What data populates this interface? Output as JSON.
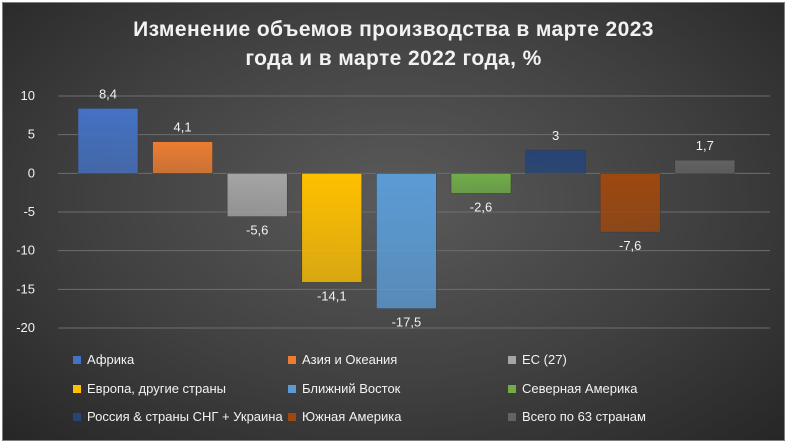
{
  "chart_data": {
    "type": "bar",
    "title_line1": "Изменение объемов производства в марте 2023",
    "title_line2": "года и в марте 2022 года, %",
    "ylim": [
      -20,
      10
    ],
    "yticks": [
      10,
      5,
      0,
      -5,
      -10,
      -15,
      -20
    ],
    "grid": true,
    "legend_placement": "bottom",
    "categories": [
      "Африка",
      "Азия и Океания",
      "ЕС (27)",
      "Европа, другие страны",
      "Ближний Восток",
      "Северная Америка",
      "Россия & страны СНГ + Украина",
      "Южная Америка",
      "Всего по 63 странам"
    ],
    "values": [
      8.4,
      4.1,
      -5.6,
      -14.1,
      -17.5,
      -2.6,
      3,
      -7.6,
      1.7
    ],
    "data_labels": [
      "8,4",
      "4,1",
      "-5,6",
      "-14,1",
      "-17,5",
      "-2,6",
      "3",
      "-7,6",
      "1,7"
    ],
    "colors": [
      "#4472c4",
      "#ed7d31",
      "#a5a5a5",
      "#ffc000",
      "#5b9bd5",
      "#70ad47",
      "#264478",
      "#9e480e",
      "#636363"
    ]
  }
}
